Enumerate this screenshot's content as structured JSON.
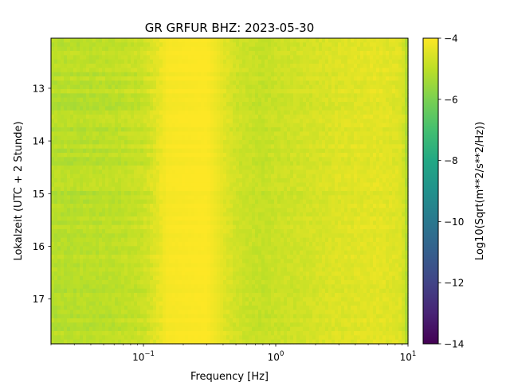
{
  "chart_data": {
    "type": "heatmap",
    "title": "GR GRFUR  BHZ: 2023-05-30",
    "xlabel": "Frequency [Hz]",
    "ylabel": "Lokalzeit (UTC + 2 Stunde)",
    "colorbar_label": "Log10(Sqrt(m**2/s**2/Hz))",
    "colormap": "viridis",
    "x_scale": "log",
    "xlim": [
      0.02,
      10
    ],
    "x_ticks": [
      {
        "value": 0.1,
        "base": "10",
        "exp": "−1"
      },
      {
        "value": 1,
        "base": "10",
        "exp": "0"
      },
      {
        "value": 10,
        "base": "10",
        "exp": "1"
      }
    ],
    "ylim": [
      17.85,
      12.05
    ],
    "y_ticks": [
      "13",
      "14",
      "15",
      "16",
      "17"
    ],
    "clim": [
      -14,
      -4
    ],
    "colorbar_ticks": [
      "−4",
      "−6",
      "−8",
      "−10",
      "−12",
      "−14"
    ],
    "approx_profile": {
      "frequency_hz": [
        0.02,
        0.06,
        0.1,
        0.12,
        0.15,
        0.3,
        0.4,
        0.5,
        0.6,
        0.8,
        1.0,
        1.5,
        3,
        6,
        9,
        10
      ],
      "log10_amplitude": [
        -5.1,
        -5.0,
        -4.8,
        -4.5,
        -4.1,
        -4.0,
        -4.4,
        -4.7,
        -4.8,
        -4.9,
        -4.8,
        -4.7,
        -4.5,
        -4.4,
        -4.5,
        -5.4
      ]
    }
  }
}
